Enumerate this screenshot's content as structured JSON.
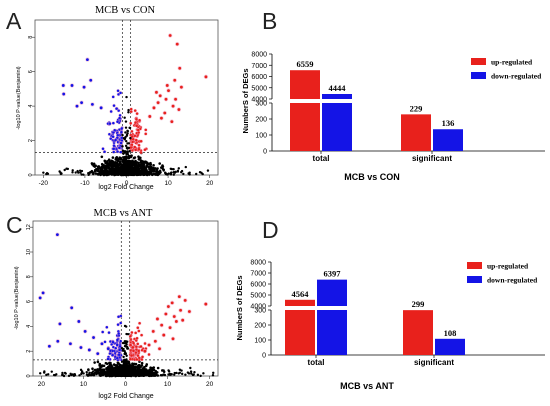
{
  "panels": {
    "A": {
      "letter": "A",
      "title": "MCB vs CON"
    },
    "B": {
      "letter": "B"
    },
    "C": {
      "letter": "C",
      "title": "MCB vs ANT"
    },
    "D": {
      "letter": "D"
    }
  },
  "colors": {
    "up": "#e8211c",
    "down": "#1414e6",
    "ns": "#000000",
    "halo": "#f2a8c8"
  },
  "chart_data": [
    {
      "panel": "A",
      "type": "scatter",
      "title": "MCB vs CON",
      "xlabel": "log2 Fold Change",
      "ylabel": "-log10 P-value(Benjamini)",
      "xticks": [
        "-20",
        "-10",
        "0",
        "10",
        "20"
      ],
      "yticks": [
        "0",
        "2",
        "4",
        "6",
        "8"
      ],
      "xlim": [
        -22,
        22
      ],
      "ylim": [
        0,
        9
      ],
      "guides": {
        "x": [
          -1,
          1
        ],
        "y": 1.3
      },
      "series": [
        {
          "class": "up",
          "points": [
            [
              10.5,
              8.1
            ],
            [
              12.2,
              7.6
            ],
            [
              12.8,
              6.2
            ],
            [
              11.6,
              5.5
            ],
            [
              13.2,
              5.1
            ],
            [
              10.1,
              4.9
            ],
            [
              8.1,
              4.6
            ],
            [
              9.5,
              4.4
            ],
            [
              11.2,
              4.0
            ],
            [
              7.6,
              4.2
            ],
            [
              12.6,
              3.8
            ],
            [
              9.2,
              3.6
            ],
            [
              6.6,
              3.9
            ],
            [
              8.4,
              3.3
            ],
            [
              10.9,
              3.1
            ],
            [
              19.1,
              5.7
            ],
            [
              7.2,
              4.8
            ],
            [
              5.6,
              3.4
            ],
            [
              9.8,
              5.2
            ],
            [
              11.8,
              4.4
            ]
          ]
        },
        {
          "class": "down",
          "points": [
            [
              -15.2,
              5.2
            ],
            [
              -13.1,
              5.2
            ],
            [
              -9.4,
              6.7
            ],
            [
              -8.6,
              5.5
            ],
            [
              -10.2,
              5.1
            ],
            [
              -15.1,
              4.7
            ],
            [
              -8.2,
              4.1
            ],
            [
              -10.8,
              4.2
            ],
            [
              -6.1,
              3.9
            ],
            [
              -11.9,
              4.0
            ]
          ]
        }
      ]
    },
    {
      "panel": "B",
      "type": "bar",
      "xlabel": "MCB vs CON",
      "ylabel": "NumberS of DEGs",
      "yticks": [
        "0",
        "100",
        "200",
        "300",
        "4000",
        "5000",
        "6000",
        "7000",
        "8000"
      ],
      "categories": [
        "total",
        "significant"
      ],
      "series": [
        {
          "name": "up-regulated",
          "values": [
            6559,
            229
          ]
        },
        {
          "name": "down-regulated",
          "values": [
            4444,
            136
          ]
        }
      ],
      "value_labels": [
        [
          "6559",
          "229"
        ],
        [
          "4444",
          "136"
        ]
      ],
      "axis_break": [
        300,
        4000
      ],
      "legend": "top-right"
    },
    {
      "panel": "C",
      "type": "scatter",
      "title": "MCB vs ANT",
      "xlabel": "log2 Fold Change",
      "ylabel": "-log10 P-value(Benjamini)",
      "xticks": [
        "20",
        "10",
        "0",
        "10",
        "20"
      ],
      "yticks": [
        "0",
        "2",
        "4",
        "6",
        "8",
        "10",
        "12"
      ],
      "xlim": [
        -22,
        22
      ],
      "ylim": [
        0,
        12.5
      ],
      "guides": {
        "x": [
          -1,
          1
        ],
        "y": 1.3
      },
      "series": [
        {
          "class": "up",
          "points": [
            [
              12.8,
              6.4
            ],
            [
              14.2,
              6.1
            ],
            [
              11.1,
              5.9
            ],
            [
              10.2,
              5.6
            ],
            [
              13.1,
              5.3
            ],
            [
              9.6,
              5.0
            ],
            [
              11.6,
              4.8
            ],
            [
              7.6,
              4.6
            ],
            [
              12.1,
              4.4
            ],
            [
              8.6,
              4.1
            ],
            [
              10.6,
              3.9
            ],
            [
              6.6,
              3.6
            ],
            [
              13.6,
              4.5
            ],
            [
              9.1,
              3.3
            ],
            [
              11.3,
              3.0
            ],
            [
              7.1,
              2.8
            ],
            [
              5.6,
              2.5
            ],
            [
              8.1,
              2.2
            ],
            [
              19.1,
              5.8
            ],
            [
              15.2,
              5.2
            ],
            [
              4.6,
              2.0
            ]
          ]
        },
        {
          "class": "down",
          "points": [
            [
              -16.2,
              11.4
            ],
            [
              -19.6,
              6.7
            ],
            [
              -20.3,
              6.3
            ],
            [
              -12.8,
              5.5
            ],
            [
              -11.1,
              4.4
            ],
            [
              -15.6,
              4.2
            ],
            [
              -16.1,
              2.8
            ],
            [
              -9.6,
              3.6
            ],
            [
              -7.6,
              3.1
            ],
            [
              -5.6,
              2.6
            ],
            [
              -18.1,
              2.4
            ],
            [
              -13.1,
              2.6
            ],
            [
              -8.6,
              2.1
            ],
            [
              -10.6,
              2.3
            ],
            [
              -4.1,
              2.2
            ],
            [
              -6.6,
              1.8
            ]
          ]
        }
      ]
    },
    {
      "panel": "D",
      "type": "bar",
      "xlabel": "MCB vs ANT",
      "ylabel": "NumberS of DEGs",
      "yticks": [
        "0",
        "100",
        "200",
        "300",
        "4000",
        "5000",
        "6000",
        "7000",
        "8000"
      ],
      "categories": [
        "total",
        "significant"
      ],
      "series": [
        {
          "name": "up-regulated",
          "values": [
            4564,
            299
          ]
        },
        {
          "name": "down-regulated",
          "values": [
            6397,
            108
          ]
        }
      ],
      "value_labels": [
        [
          "4564",
          "299"
        ],
        [
          "6397",
          "108"
        ]
      ],
      "axis_break": [
        300,
        4000
      ],
      "legend": "top-right"
    }
  ]
}
